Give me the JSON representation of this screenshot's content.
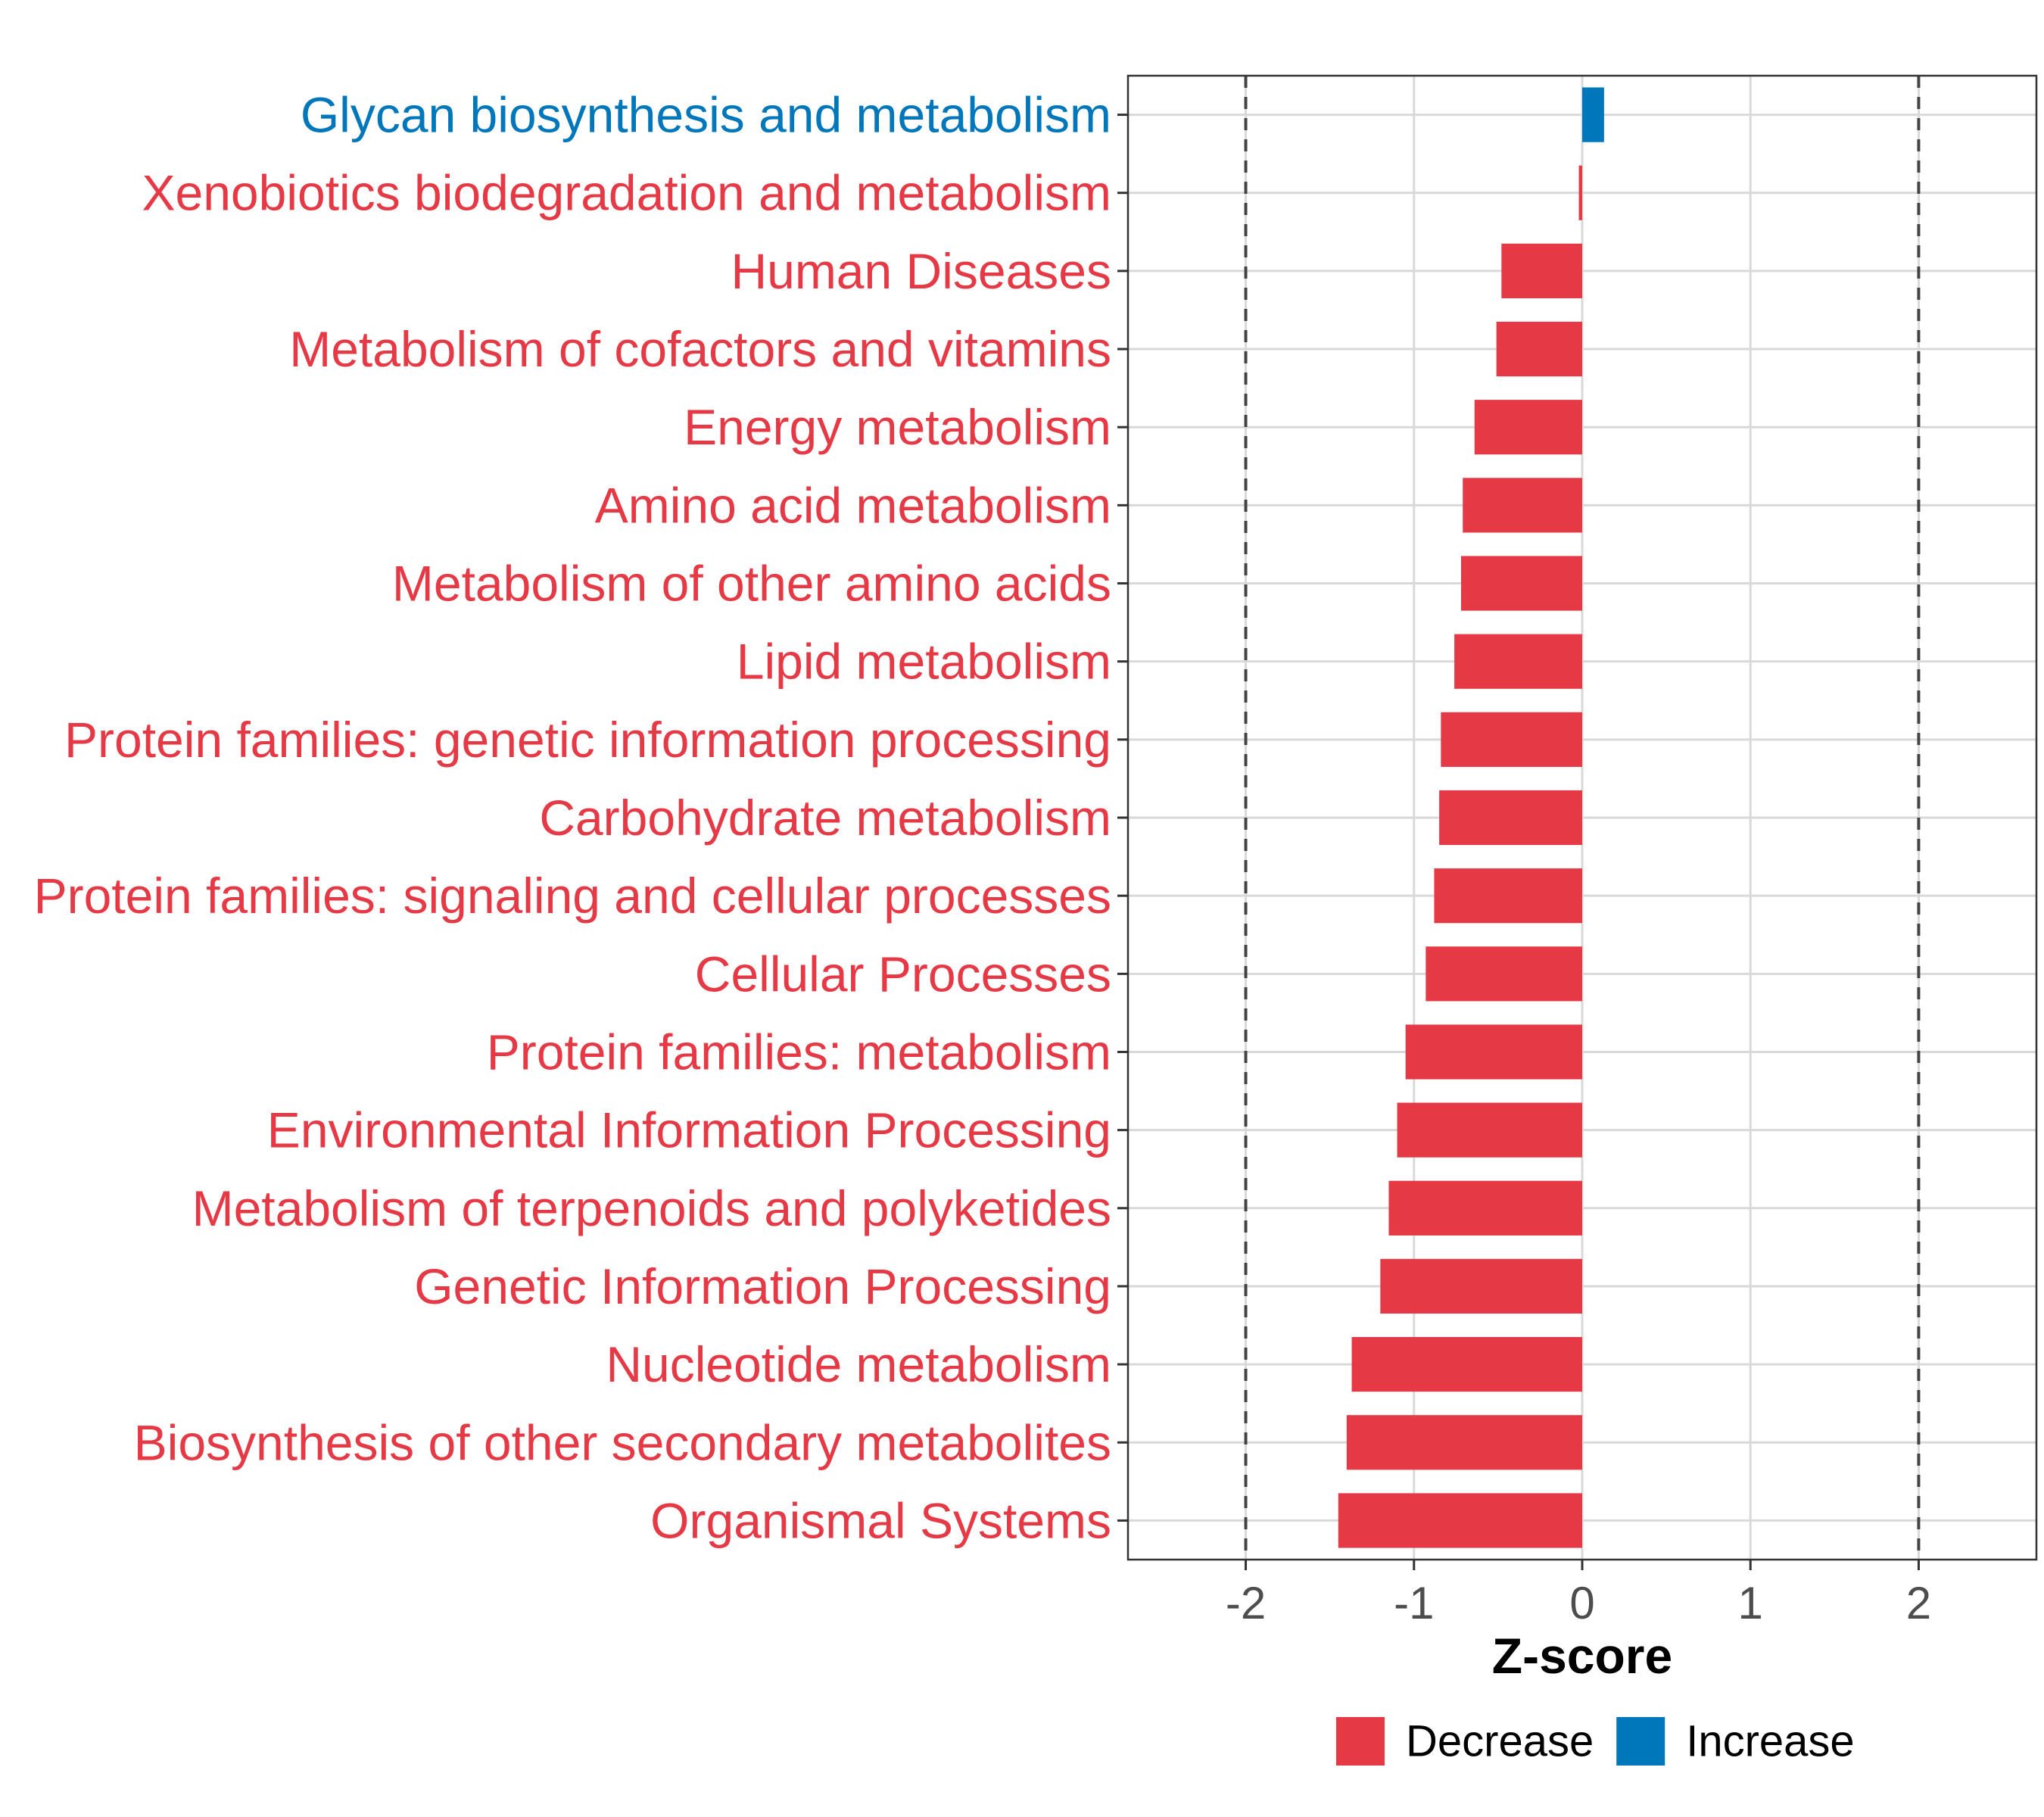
{
  "chart_data": {
    "type": "bar",
    "orientation": "horizontal",
    "categories": [
      "Glycan biosynthesis and metabolism",
      "Xenobiotics biodegradation and metabolism",
      "Human Diseases",
      "Metabolism of cofactors and vitamins",
      "Energy metabolism",
      "Amino acid metabolism",
      "Metabolism of other amino acids",
      "Lipid metabolism",
      "Protein families: genetic information processing",
      "Carbohydrate metabolism",
      "Protein families: signaling and cellular processes",
      "Cellular Processes",
      "Protein families: metabolism",
      "Environmental Information Processing",
      "Metabolism of terpenoids and polyketides",
      "Genetic Information Processing",
      "Nucleotide metabolism",
      "Biosynthesis of other secondary metabolites",
      "Organismal Systems"
    ],
    "values": [
      0.13,
      -0.02,
      -0.48,
      -0.51,
      -0.64,
      -0.71,
      -0.72,
      -0.76,
      -0.84,
      -0.85,
      -0.88,
      -0.93,
      -1.05,
      -1.1,
      -1.15,
      -1.2,
      -1.37,
      -1.4,
      -1.45
    ],
    "directions": [
      "Increase",
      "Decrease",
      "Decrease",
      "Decrease",
      "Decrease",
      "Decrease",
      "Decrease",
      "Decrease",
      "Decrease",
      "Decrease",
      "Decrease",
      "Decrease",
      "Decrease",
      "Decrease",
      "Decrease",
      "Decrease",
      "Decrease",
      "Decrease",
      "Decrease"
    ],
    "xlabel": "Z-score",
    "ylabel": "",
    "xlim": [
      -2.7,
      2.7
    ],
    "xticks": [
      -2,
      -1,
      0,
      1,
      2
    ],
    "xtick_labels": [
      "-2",
      "-1",
      "0",
      "1",
      "2"
    ],
    "reference_lines": [
      -2,
      2
    ],
    "grid": true,
    "legend": {
      "position": "bottom",
      "entries": [
        {
          "label": "Decrease",
          "color": "#e63946"
        },
        {
          "label": "Increase",
          "color": "#0077bb"
        }
      ]
    },
    "colors": {
      "Decrease": "#e63946",
      "Increase": "#0077bb"
    }
  }
}
